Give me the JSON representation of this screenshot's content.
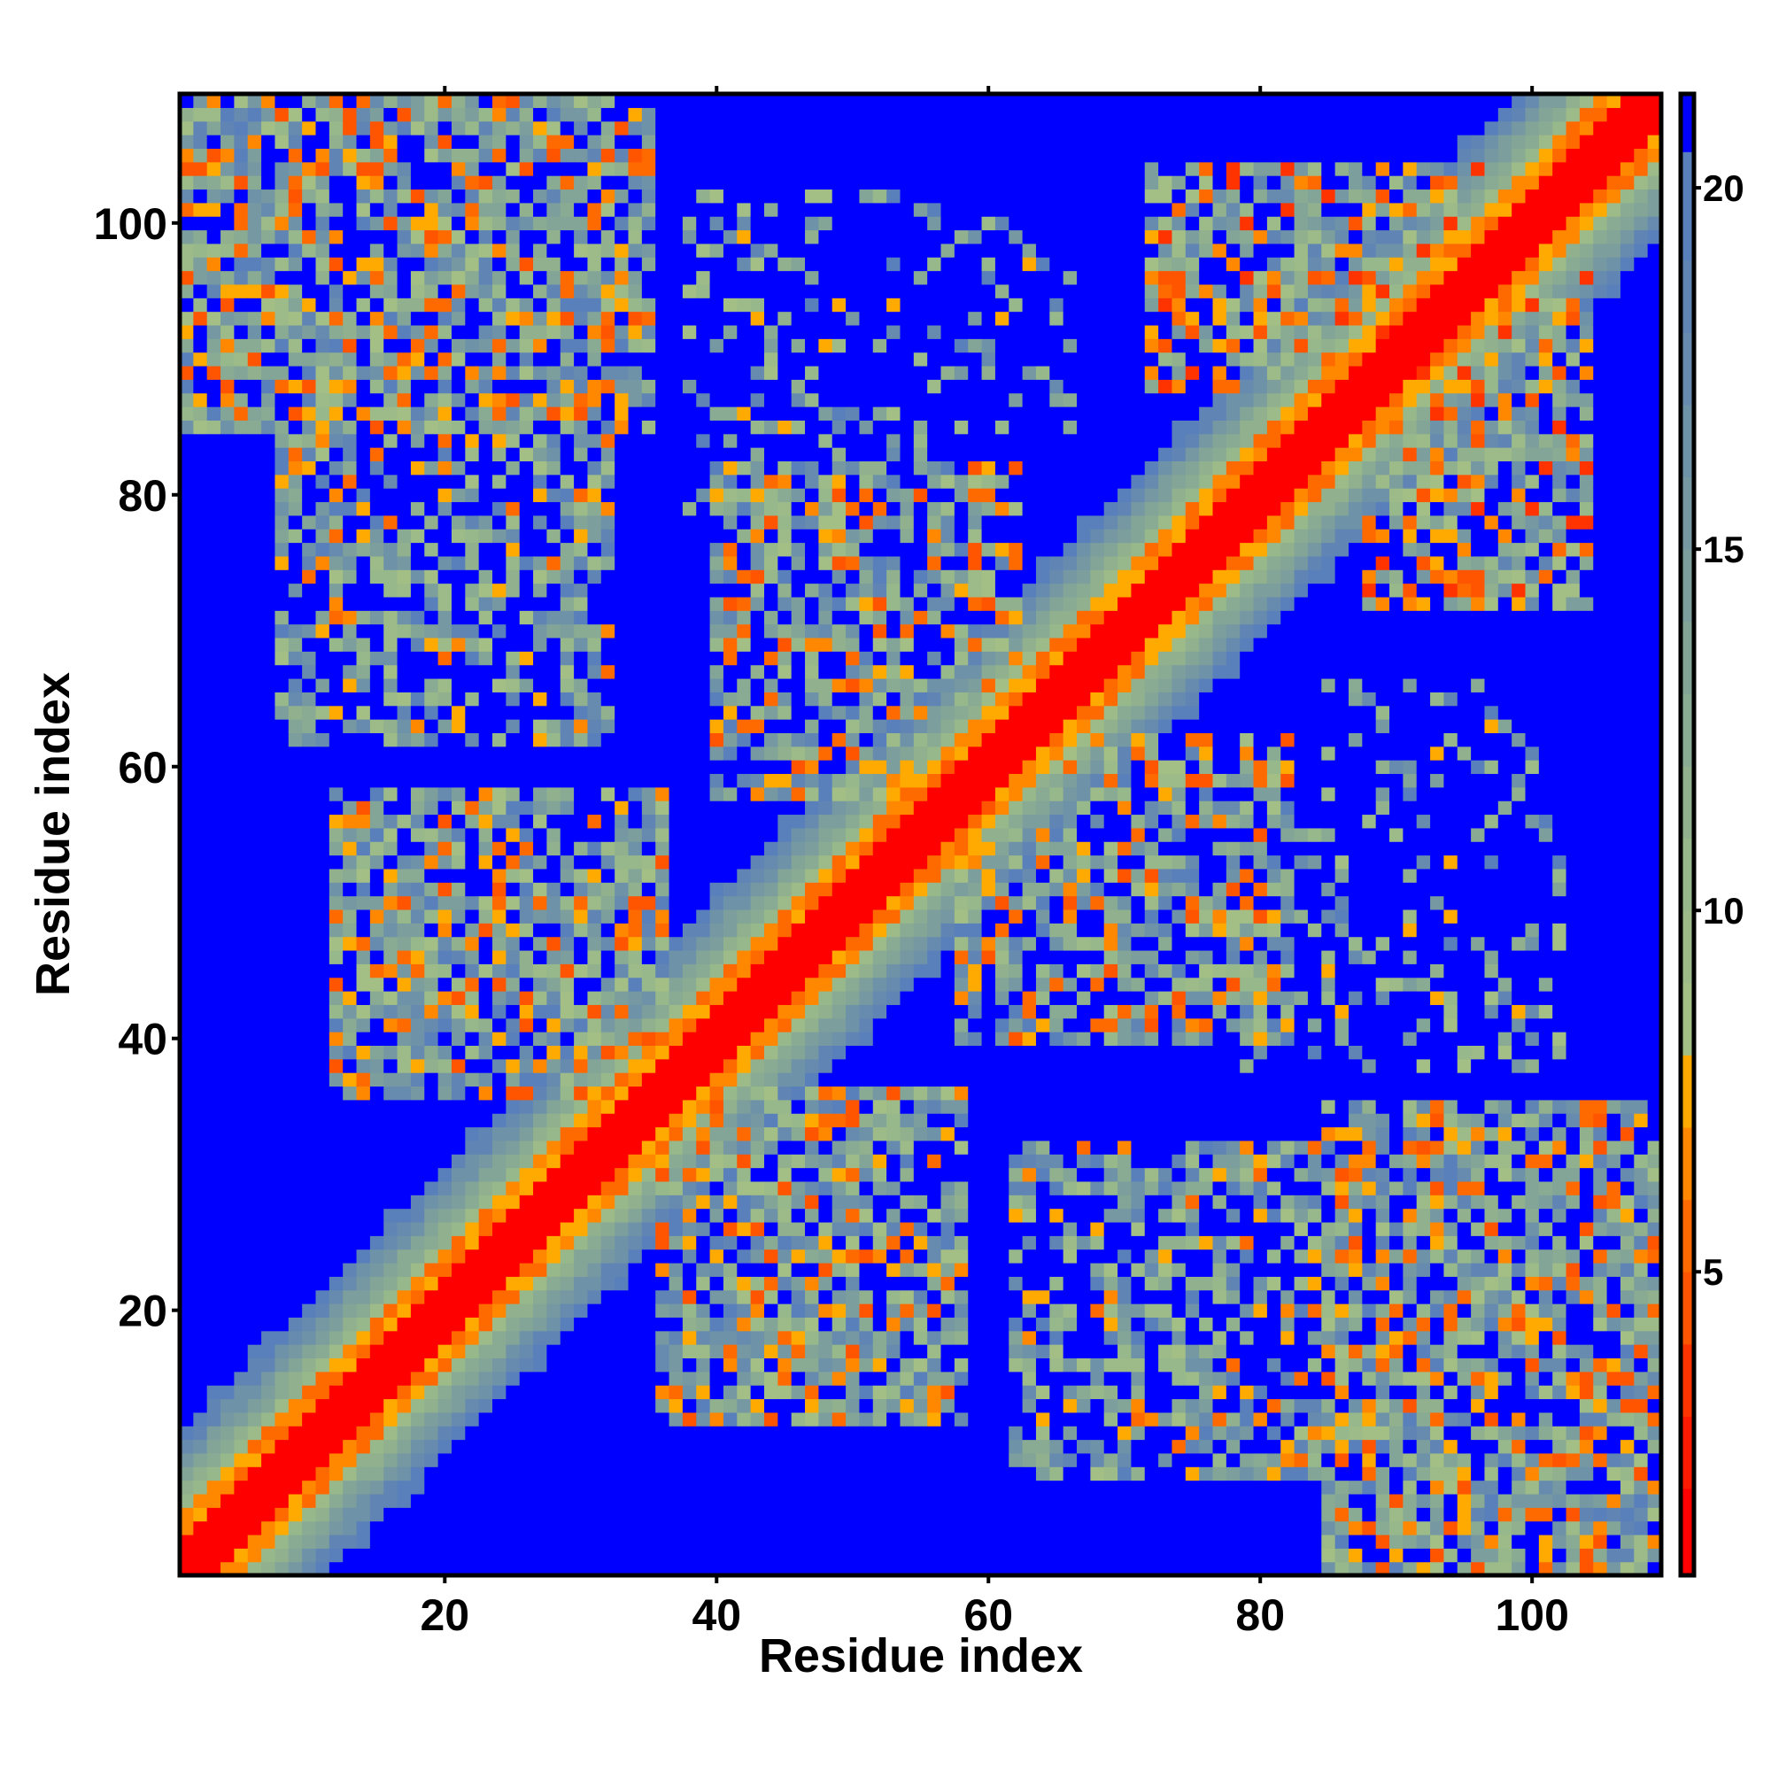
{
  "chart_data": {
    "type": "heatmap",
    "title": "",
    "xlabel": "Residue index",
    "ylabel": "Residue index",
    "n_residues": 109,
    "xlim": [
      0.5,
      109.5
    ],
    "ylim": [
      0.5,
      109.5
    ],
    "xticks": [
      20,
      40,
      60,
      80,
      100
    ],
    "yticks": [
      20,
      40,
      60,
      80,
      100
    ],
    "colorbar": {
      "range": [
        0.8,
        21.3
      ],
      "ticks": [
        5,
        10,
        15,
        20
      ],
      "levels": [
        {
          "max": 2,
          "color": "#ff0000"
        },
        {
          "max": 3,
          "color": "#ff1a00"
        },
        {
          "max": 4,
          "color": "#ff3300"
        },
        {
          "max": 5,
          "color": "#ff5500"
        },
        {
          "max": 6,
          "color": "#ff6a00"
        },
        {
          "max": 7,
          "color": "#ff8800"
        },
        {
          "max": 8,
          "color": "#ffaa00"
        },
        {
          "max": 9,
          "color": "#a3bf85"
        },
        {
          "max": 10,
          "color": "#9dbb88"
        },
        {
          "max": 11,
          "color": "#97b88a"
        },
        {
          "max": 12,
          "color": "#90b08e"
        },
        {
          "max": 13,
          "color": "#89aa93"
        },
        {
          "max": 14,
          "color": "#83a598"
        },
        {
          "max": 15,
          "color": "#7c9e9c"
        },
        {
          "max": 16,
          "color": "#7598a2"
        },
        {
          "max": 17,
          "color": "#6e92a8"
        },
        {
          "max": 18,
          "color": "#678bae"
        },
        {
          "max": 19,
          "color": "#6085b4"
        },
        {
          "max": 20.5,
          "color": "#5a80bb"
        },
        {
          "max": 99,
          "color": "#0000ff"
        }
      ]
    },
    "symmetric": true,
    "diagonal_band": {
      "red_width": 2,
      "orange_width": 4,
      "green_width": 11
    },
    "contact_regions": [
      {
        "i": [
          85,
          109
        ],
        "j": [
          1,
          35
        ],
        "density": 0.75,
        "mean": 12
      },
      {
        "i": [
          62,
          92
        ],
        "j": [
          8,
          32
        ],
        "density": 0.6,
        "mean": 13
      },
      {
        "i": [
          36,
          58
        ],
        "j": [
          12,
          36
        ],
        "density": 0.75,
        "mean": 12
      },
      {
        "i": [
          58,
          82
        ],
        "j": [
          40,
          62
        ],
        "density": 0.7,
        "mean": 12
      },
      {
        "i": [
          88,
          104
        ],
        "j": [
          72,
          96
        ],
        "density": 0.7,
        "mean": 11
      },
      {
        "i": [
          78,
          102
        ],
        "j": [
          38,
          56
        ],
        "density": 0.35,
        "mean": 15
      },
      {
        "i": [
          85,
          100
        ],
        "j": [
          40,
          66
        ],
        "density": 0.25,
        "mean": 15
      },
      {
        "i": [
          10,
          30
        ],
        "j": [
          50,
          70
        ],
        "density": 0.0,
        "mean": 15
      }
    ]
  }
}
